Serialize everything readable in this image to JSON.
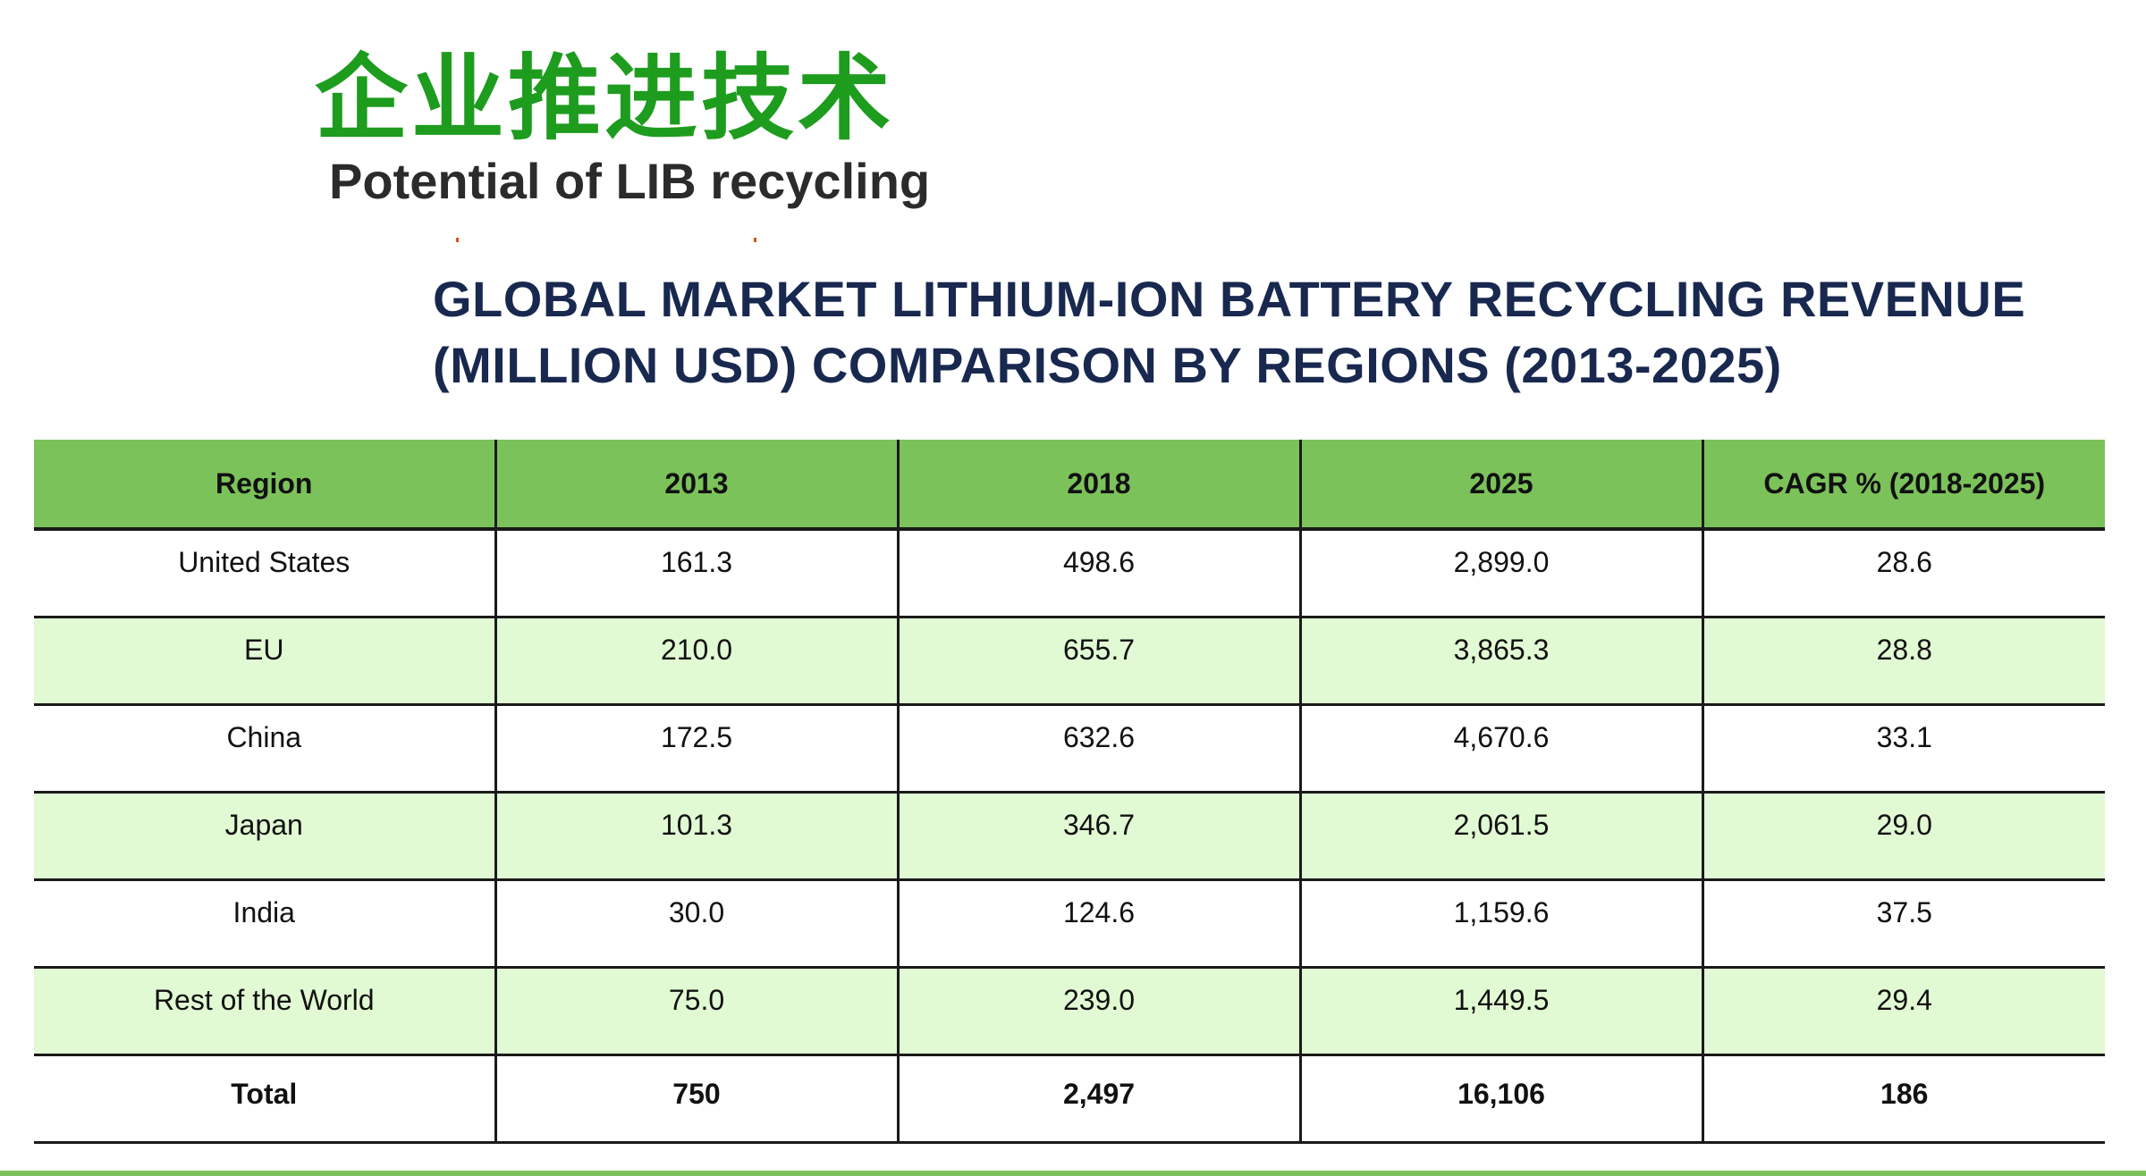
{
  "slide": {
    "title": "企业推进技术",
    "subtitle": "Potential of LIB recycling"
  },
  "table": {
    "title_line1": "GLOBAL MARKET LITHIUM-ION BATTERY RECYCLING REVENUE",
    "title_line2": "(MILLION USD) COMPARISON BY REGIONS (2013-2025)",
    "headers": [
      "Region",
      "2013",
      "2018",
      "2025",
      "CAGR % (2018-2025)"
    ],
    "rows": [
      [
        "United States",
        "161.3",
        "498.6",
        "2,899.0",
        "28.6"
      ],
      [
        "EU",
        "210.0",
        "655.7",
        "3,865.3",
        "28.8"
      ],
      [
        "China",
        "172.5",
        "632.6",
        "4,670.6",
        "33.1"
      ],
      [
        "Japan",
        "101.3",
        "346.7",
        "2,061.5",
        "29.0"
      ],
      [
        "India",
        "30.0",
        "124.6",
        "1,159.6",
        "37.5"
      ],
      [
        "Rest of the World",
        "75.0",
        "239.0",
        "1,449.5",
        "29.4"
      ]
    ],
    "total": [
      "Total",
      "750",
      "2,497",
      "16,106",
      "186"
    ]
  },
  "colors": {
    "title_green": "#1e9c1e",
    "header_green": "#7cc25a",
    "row_shade": "#e2fad3",
    "heading_navy": "#18284f"
  }
}
